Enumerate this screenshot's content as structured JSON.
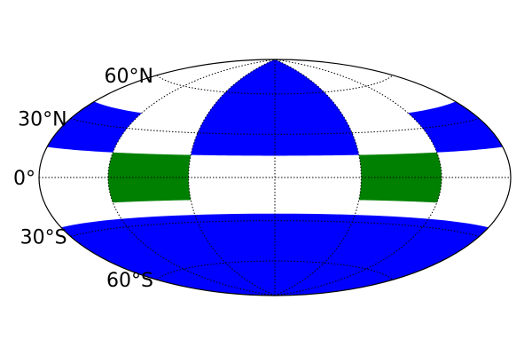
{
  "map": {
    "projection": "hammer",
    "graticule": {
      "parallels_deg": [
        -60,
        -30,
        0,
        30,
        60
      ],
      "meridians_deg": [
        -120,
        -60,
        0,
        60,
        120
      ],
      "line_style": "dotted",
      "line_color": "#000000"
    },
    "latitude_labels": [
      {
        "lat": 60,
        "text": "60°N"
      },
      {
        "lat": 30,
        "text": "30°N"
      },
      {
        "lat": 0,
        "text": "0°"
      },
      {
        "lat": -30,
        "text": "30°S"
      },
      {
        "lat": -60,
        "text": "60°S"
      }
    ],
    "regions": [
      {
        "name": "north-cap-center",
        "color": "#0000ff",
        "lon_range": [
          -60,
          60
        ],
        "lat_range": [
          15,
          90
        ]
      },
      {
        "name": "north-band-left",
        "color": "#0000ff",
        "lon_range": [
          -180,
          -120
        ],
        "lat_range": [
          15,
          40
        ]
      },
      {
        "name": "north-band-right",
        "color": "#0000ff",
        "lon_range": [
          120,
          180
        ],
        "lat_range": [
          15,
          40
        ]
      },
      {
        "name": "south-band",
        "color": "#0000ff",
        "lon_range": [
          -180,
          180
        ],
        "lat_range": [
          -25,
          -90
        ]
      },
      {
        "name": "green-left",
        "color": "#008000",
        "lon_range": [
          -120,
          -60
        ],
        "lat_range": [
          -15,
          15
        ]
      },
      {
        "name": "green-right",
        "color": "#008000",
        "lon_range": [
          60,
          120
        ],
        "lat_range": [
          -15,
          15
        ]
      }
    ]
  }
}
